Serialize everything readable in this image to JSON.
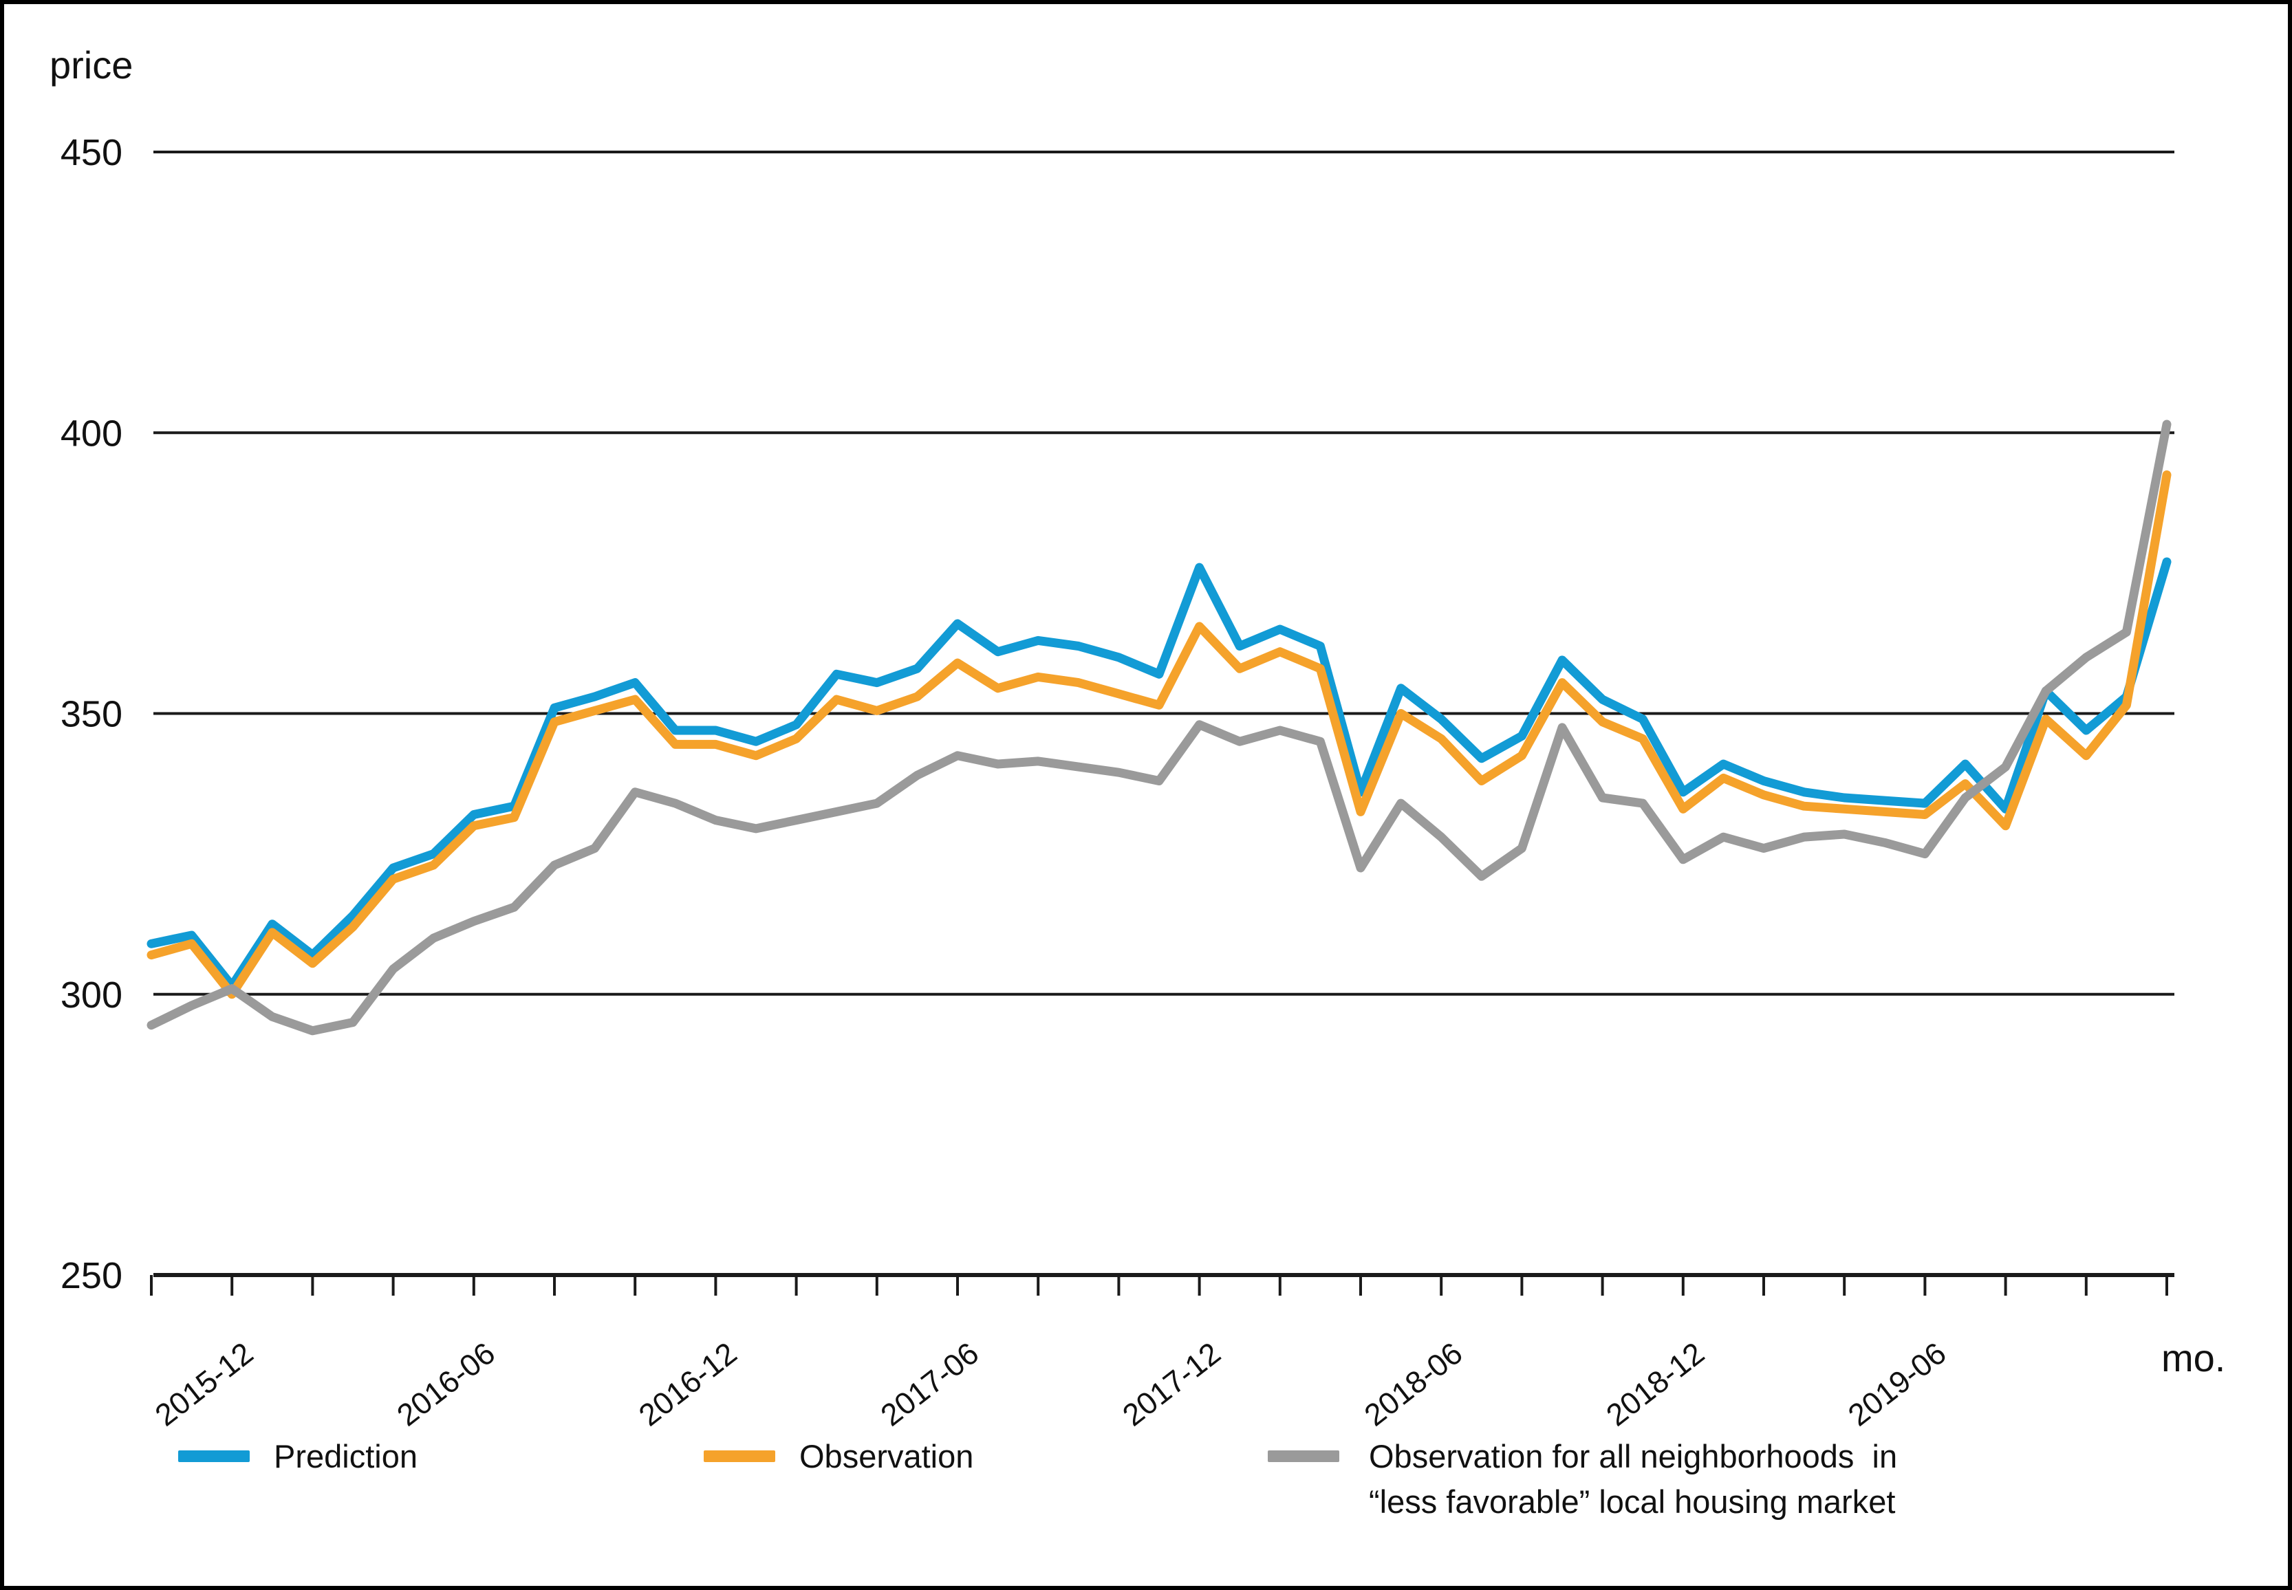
{
  "figure": {
    "y_axis_title": "price",
    "x_axis_title": "mo.",
    "background_color": "#ffffff",
    "border_color": "#000000",
    "text_color": "#111111"
  },
  "chart_data": {
    "type": "line",
    "title": "",
    "xlabel": "mo.",
    "ylabel": "price",
    "ylim": [
      250,
      450
    ],
    "yticks": [
      250,
      300,
      350,
      400,
      450
    ],
    "grid": "horizontal",
    "x_months": [
      "2015-10",
      "2015-11",
      "2015-12",
      "2016-01",
      "2016-02",
      "2016-03",
      "2016-04",
      "2016-05",
      "2016-06",
      "2016-07",
      "2016-08",
      "2016-09",
      "2016-10",
      "2016-11",
      "2016-12",
      "2017-01",
      "2017-02",
      "2017-03",
      "2017-04",
      "2017-05",
      "2017-06",
      "2017-07",
      "2017-08",
      "2017-09",
      "2017-10",
      "2017-11",
      "2017-12",
      "2018-01",
      "2018-02",
      "2018-03",
      "2018-04",
      "2018-05",
      "2018-06",
      "2018-07",
      "2018-08",
      "2018-09",
      "2018-10",
      "2018-11",
      "2018-12",
      "2019-01",
      "2019-02",
      "2019-03",
      "2019-04",
      "2019-05",
      "2019-06",
      "2019-07",
      "2019-08",
      "2019-09",
      "2019-10",
      "2019-11",
      "2019-12"
    ],
    "xtick_label_indices": [
      2,
      8,
      14,
      20,
      26,
      32,
      38,
      44
    ],
    "xtick_labels": [
      "2015-12",
      "2016-06",
      "2016-12",
      "2017-06",
      "2017-12",
      "2018-06",
      "2018-12",
      "2019-06"
    ],
    "minor_tick_every_months": 2,
    "series": [
      {
        "name": "Prediction",
        "color": "#129BD5",
        "values": [
          309,
          310.5,
          301.5,
          312.5,
          307,
          314,
          322.5,
          325,
          332,
          333.5,
          351,
          353,
          355.5,
          347,
          347,
          345,
          348,
          357,
          355.5,
          358,
          366,
          361,
          363,
          362,
          360,
          357,
          376,
          362,
          365,
          362,
          336,
          354.5,
          349,
          342,
          346,
          359.5,
          352.5,
          349,
          336,
          341,
          338,
          336,
          335,
          334.5,
          334,
          341,
          333,
          354,
          347,
          353,
          377
        ]
      },
      {
        "name": "Observation",
        "color": "#F5A22B",
        "values": [
          307,
          309,
          300,
          311,
          305.5,
          312,
          320.5,
          323,
          330,
          331.5,
          348.5,
          350.5,
          352.5,
          344.5,
          344.5,
          342.5,
          345.5,
          352.5,
          350.5,
          353,
          359,
          354.5,
          356.5,
          355.5,
          353.5,
          351.5,
          365.5,
          358,
          361,
          358,
          332.5,
          350,
          345.5,
          338,
          342.5,
          355.5,
          348.5,
          345.5,
          333,
          338.5,
          335.5,
          333.5,
          333,
          332.5,
          332,
          337.5,
          330,
          349,
          342.5,
          351.5,
          392.5
        ]
      },
      {
        "name": "Observation for all neighborhoods in “less favorable” local housing market",
        "color": "#9A9A9A",
        "values": [
          294.5,
          298,
          301,
          296,
          293.5,
          295,
          304.5,
          310,
          313,
          315.5,
          323,
          326,
          336,
          334,
          331,
          329.5,
          331,
          332.5,
          334,
          339,
          342.5,
          341,
          341.5,
          340.5,
          339.5,
          338,
          348,
          345,
          347,
          345,
          322.5,
          334,
          328,
          321,
          326,
          347.5,
          335,
          334,
          324,
          328,
          326,
          328,
          328.5,
          327,
          325,
          335,
          340.5,
          354,
          360,
          364.5,
          401.5
        ]
      }
    ],
    "legend": [
      {
        "color": "#129BD5",
        "label_lines": [
          "Prediction"
        ]
      },
      {
        "color": "#F5A22B",
        "label_lines": [
          "Observation"
        ]
      },
      {
        "color": "#9A9A9A",
        "label_lines": [
          "Observation for all neighborhoods  in",
          "“less favorable” local housing market"
        ]
      }
    ]
  }
}
